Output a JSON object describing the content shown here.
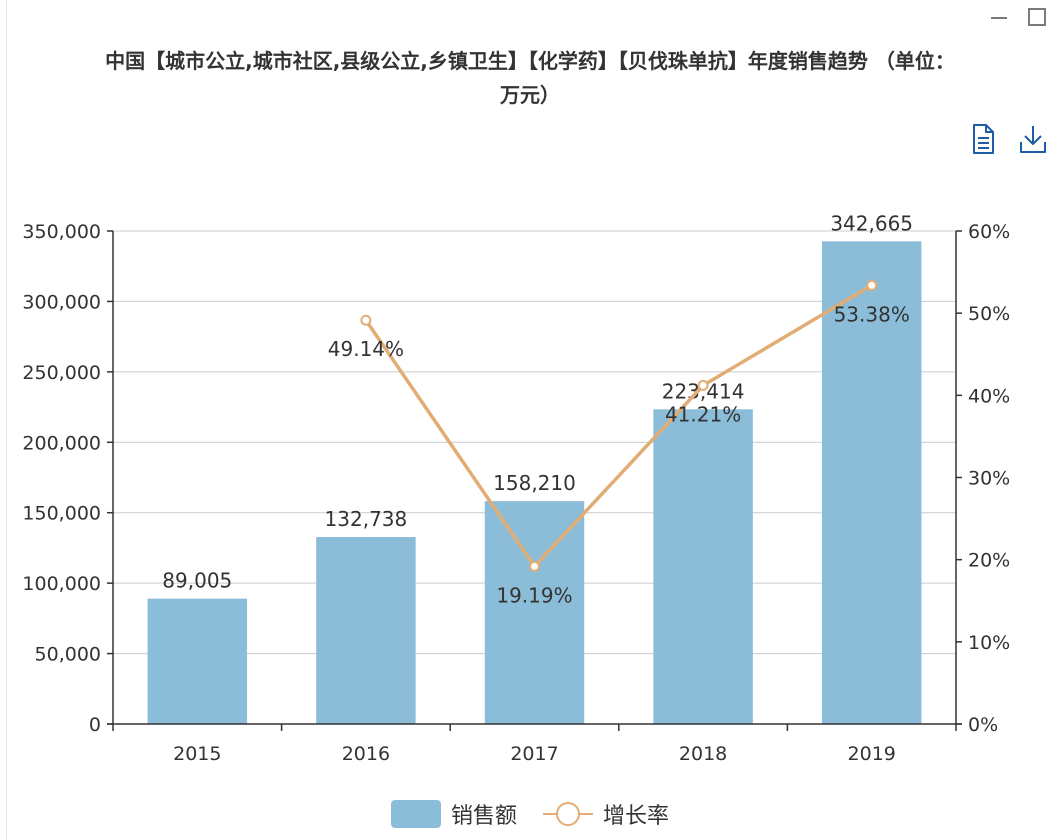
{
  "title": "中国【城市公立,城市社区,县级公立,乡镇卫生】【化学药】【贝伐珠单抗】年度销售趋势 （单位：\n万元）",
  "colors": {
    "bar": "#8bbdd9",
    "line": "#e2ad75",
    "axis": "#333333",
    "grid": "#cccccc",
    "toolbox_icon": "#1e5ba8",
    "window_icon": "#7a7a7a"
  },
  "window_controls": {
    "minimize_icon": "minimize-icon",
    "maximize_icon": "maximize-icon"
  },
  "toolbox": {
    "data_view_icon": "document-icon",
    "download_icon": "download-icon"
  },
  "chart_data": {
    "type": "bar",
    "title": "中国【城市公立,城市社区,县级公立,乡镇卫生】【化学药】【贝伐珠单抗】年度销售趋势 （单位：万元）",
    "categories": [
      "2015",
      "2016",
      "2017",
      "2018",
      "2019"
    ],
    "series": [
      {
        "name": "销售额",
        "type": "bar",
        "axis": "left",
        "values": [
          89005,
          132738,
          158210,
          223414,
          342665
        ],
        "labels": [
          "89,005",
          "132,738",
          "158,210",
          "223,414",
          "342,665"
        ]
      },
      {
        "name": "增长率",
        "type": "line",
        "axis": "right",
        "values": [
          null,
          49.14,
          19.19,
          41.21,
          53.38
        ],
        "labels": [
          "",
          "49.14%",
          "19.19%",
          "41.21%",
          "53.38%"
        ]
      }
    ],
    "y_left": {
      "min": 0,
      "max": 350000,
      "ticks": [
        0,
        50000,
        100000,
        150000,
        200000,
        250000,
        300000,
        350000
      ],
      "tick_labels": [
        "0",
        "50,000",
        "100,000",
        "150,000",
        "200,000",
        "250,000",
        "300,000",
        "350,000"
      ]
    },
    "y_right": {
      "min": 0,
      "max": 60,
      "ticks": [
        0,
        10,
        20,
        30,
        40,
        50,
        60
      ],
      "tick_labels": [
        "0%",
        "10%",
        "20%",
        "30%",
        "40%",
        "50%",
        "60%"
      ]
    },
    "grid": true,
    "legend_position": "bottom-center"
  },
  "legend": {
    "items": [
      {
        "label": "销售额",
        "kind": "bar"
      },
      {
        "label": "增长率",
        "kind": "line"
      }
    ]
  }
}
